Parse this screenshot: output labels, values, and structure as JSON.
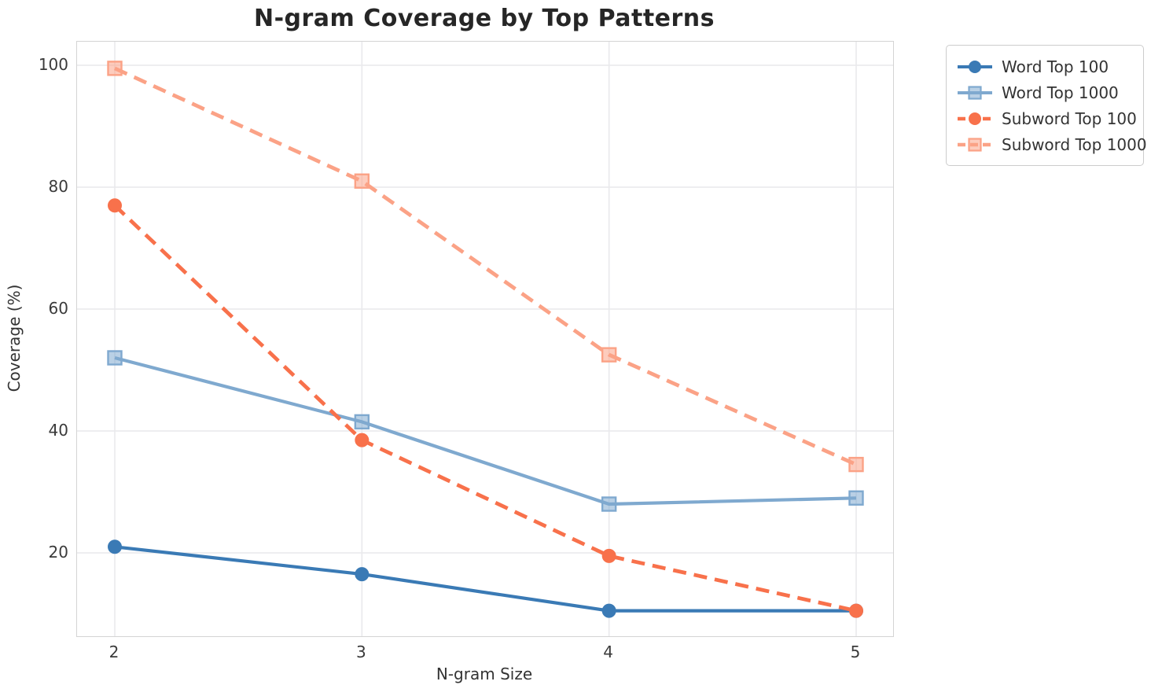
{
  "chart": {
    "title": "N-gram Coverage by Top Patterns",
    "xlabel": "N-gram Size",
    "ylabel": "Coverage (%)"
  },
  "chart_data": {
    "type": "line",
    "title": "N-gram Coverage by Top Patterns",
    "xlabel": "N-gram Size",
    "ylabel": "Coverage (%)",
    "x": [
      2,
      3,
      4,
      5
    ],
    "x_ticks": [
      "2",
      "3",
      "4",
      "5"
    ],
    "y_ticks": [
      20,
      40,
      60,
      80,
      100
    ],
    "xlim": [
      1.85,
      5.15
    ],
    "ylim": [
      6.3,
      103.9
    ],
    "grid": true,
    "legend_position": "outside-top-right",
    "series": [
      {
        "name": "Word Top 100",
        "values": [
          21,
          16.5,
          10.5,
          10.5
        ],
        "color": "#3a7ab5",
        "dash": false,
        "marker": "circle"
      },
      {
        "name": "Word Top 1000",
        "values": [
          52,
          41.5,
          28,
          29
        ],
        "color": "#7fa9cf",
        "dash": false,
        "marker": "square"
      },
      {
        "name": "Subword Top 100",
        "values": [
          77,
          38.5,
          19.5,
          10.5
        ],
        "color": "#f8714b",
        "dash": true,
        "marker": "circle"
      },
      {
        "name": "Subword Top 1000",
        "values": [
          99.5,
          81,
          52.5,
          34.5
        ],
        "color": "#fba286",
        "dash": true,
        "marker": "square"
      }
    ],
    "grid_color": "#e9e9ec",
    "spine_color": "#d4d4d4"
  }
}
